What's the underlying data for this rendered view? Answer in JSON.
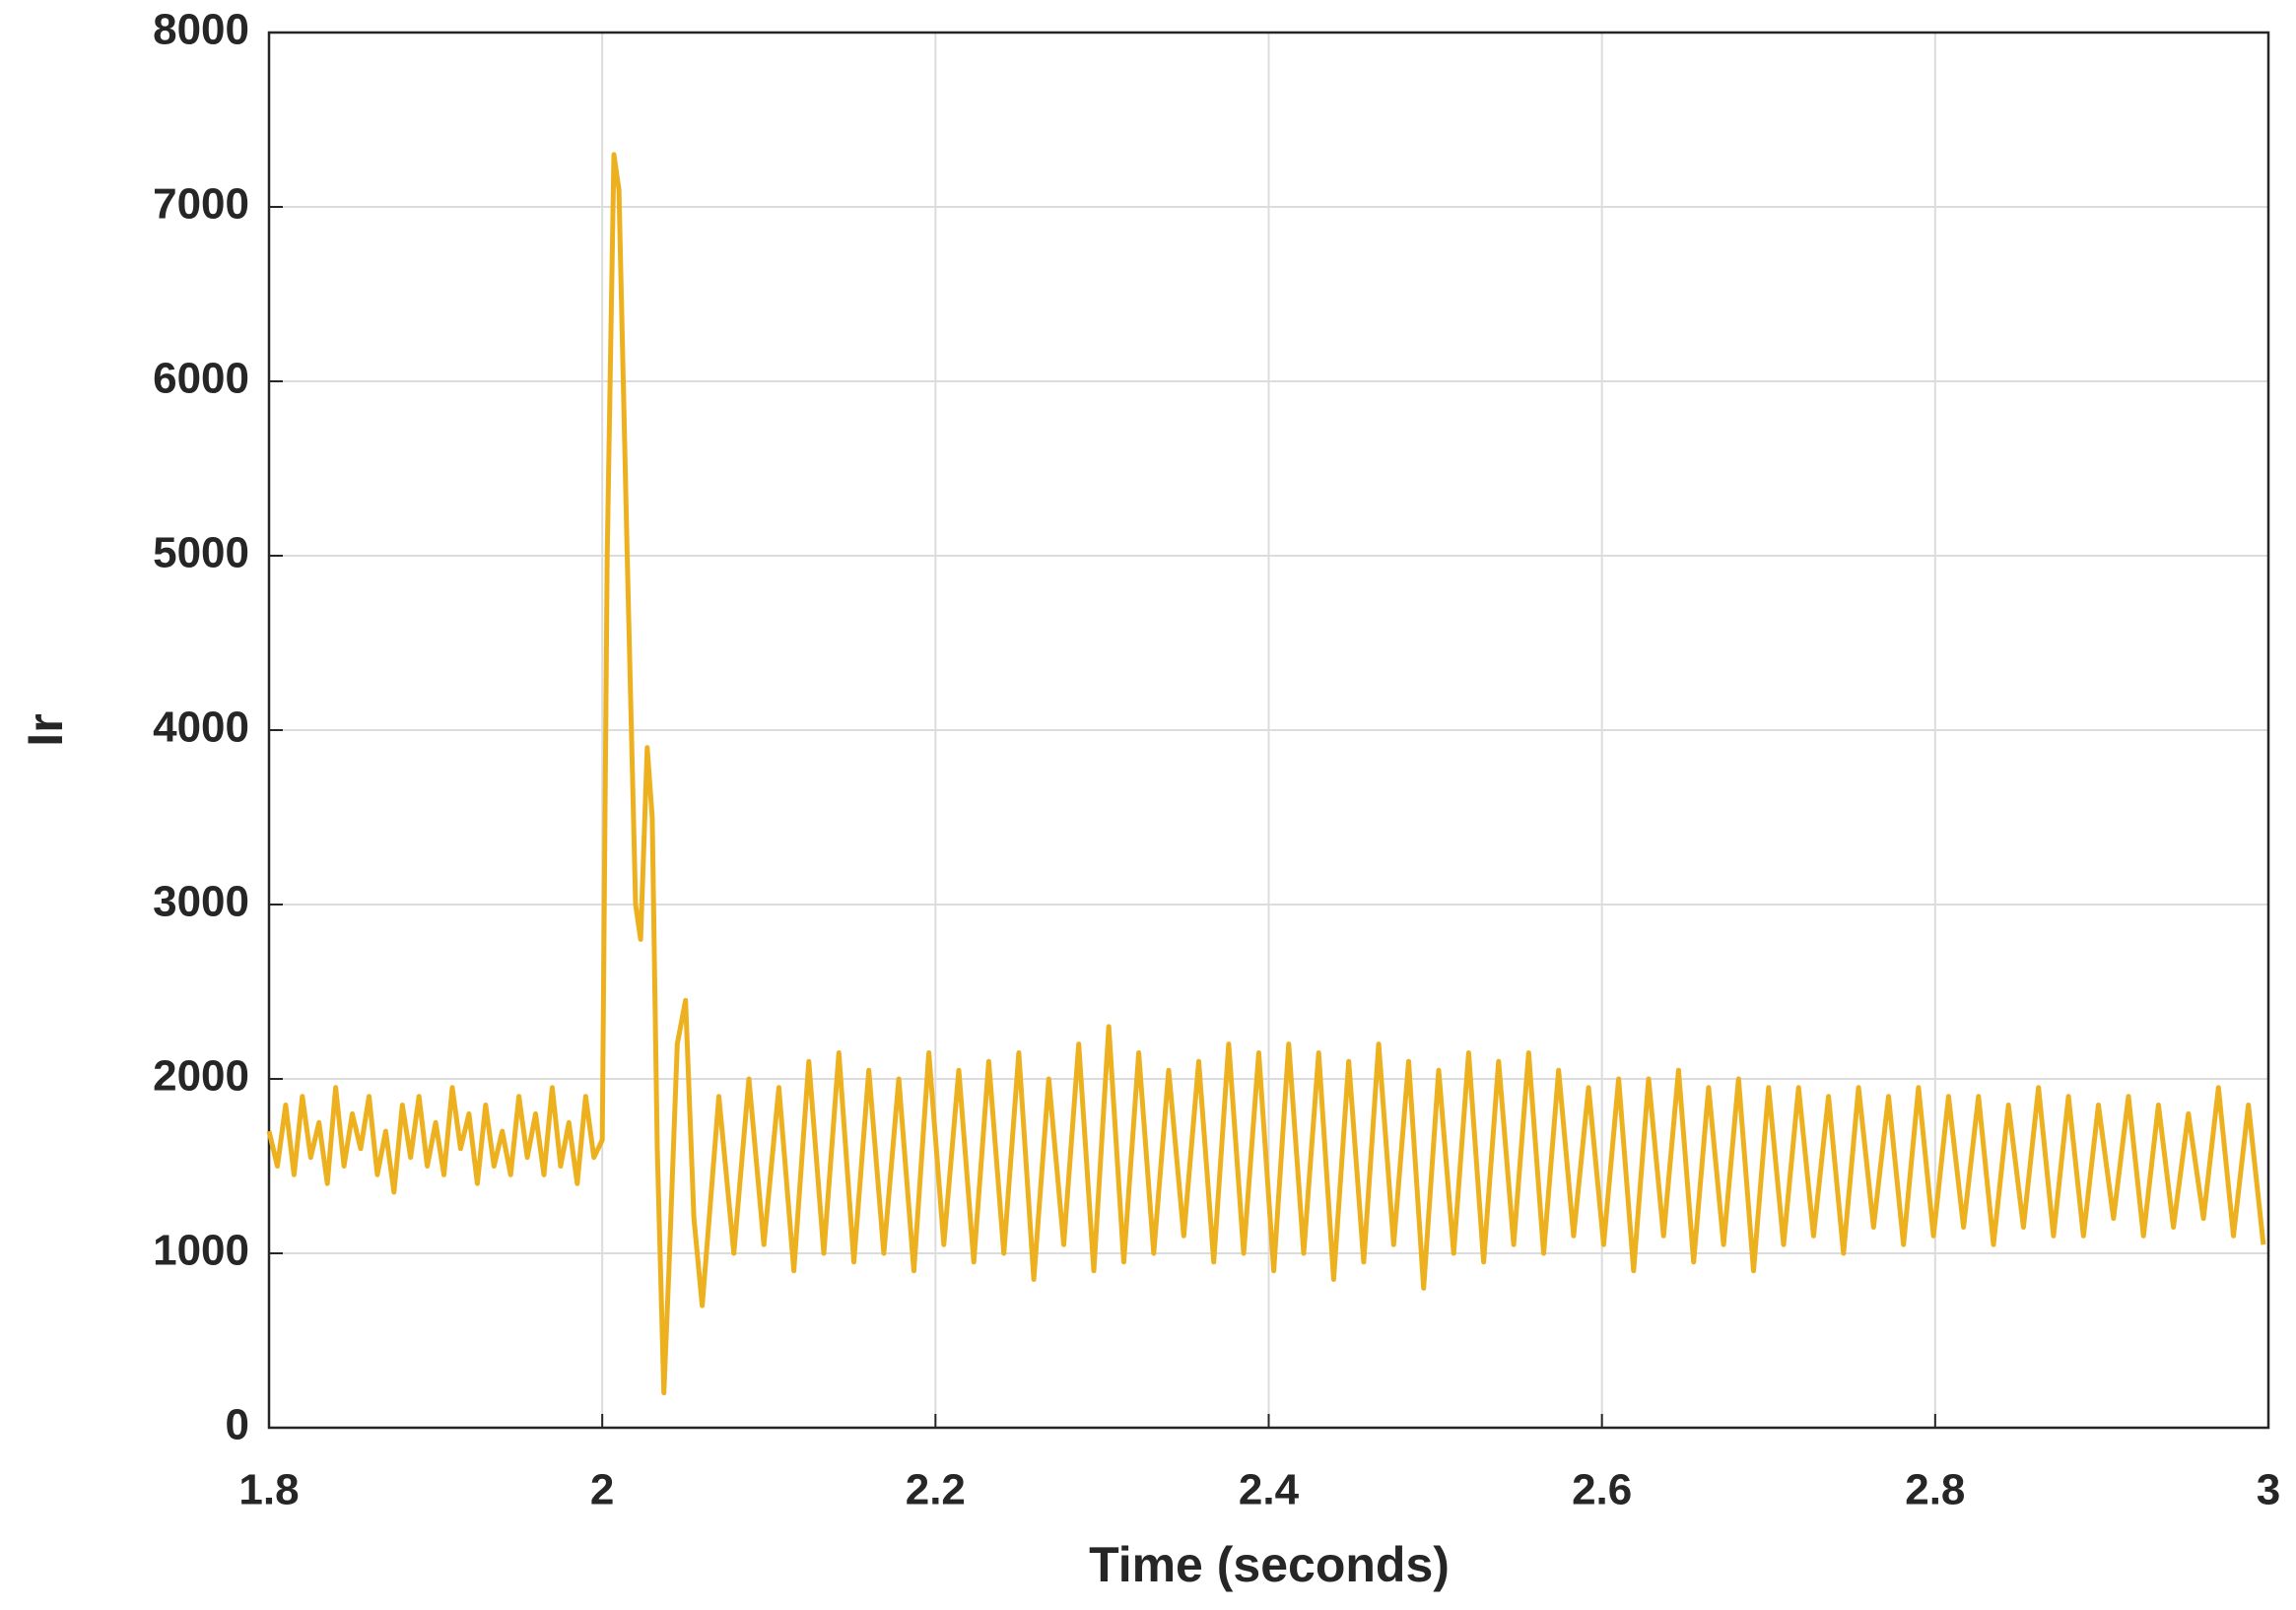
{
  "chart_data": {
    "type": "line",
    "x_label": "Time (seconds)",
    "y_label": "Ir",
    "xlim": [
      1.8,
      3
    ],
    "ylim": [
      0,
      8000
    ],
    "xticks": [
      1.8,
      2,
      2.2,
      2.4,
      2.6,
      2.8,
      3
    ],
    "yticks": [
      0,
      1000,
      2000,
      3000,
      4000,
      5000,
      6000,
      7000,
      8000
    ],
    "grid": true,
    "series": [
      {
        "color": "#EDB120",
        "x": [
          1.8,
          1.805,
          1.81,
          1.815,
          1.82,
          1.825,
          1.83,
          1.835,
          1.84,
          1.845,
          1.85,
          1.855,
          1.86,
          1.865,
          1.87,
          1.875,
          1.88,
          1.885,
          1.89,
          1.895,
          1.9,
          1.905,
          1.91,
          1.915,
          1.92,
          1.925,
          1.93,
          1.935,
          1.94,
          1.945,
          1.95,
          1.955,
          1.96,
          1.965,
          1.97,
          1.975,
          1.98,
          1.985,
          1.99,
          1.995,
          2.0,
          2.003,
          2.007,
          2.01,
          2.015,
          2.02,
          2.023,
          2.027,
          2.03,
          2.033,
          2.037,
          2.04,
          2.045,
          2.05,
          2.055,
          2.06,
          2.065,
          2.07,
          2.079,
          2.088,
          2.097,
          2.106,
          2.115,
          2.124,
          2.133,
          2.142,
          2.151,
          2.16,
          2.169,
          2.178,
          2.187,
          2.196,
          2.205,
          2.214,
          2.223,
          2.232,
          2.241,
          2.25,
          2.259,
          2.268,
          2.277,
          2.286,
          2.295,
          2.304,
          2.313,
          2.322,
          2.331,
          2.34,
          2.349,
          2.358,
          2.367,
          2.376,
          2.385,
          2.394,
          2.403,
          2.412,
          2.421,
          2.43,
          2.439,
          2.448,
          2.457,
          2.466,
          2.475,
          2.484,
          2.493,
          2.502,
          2.511,
          2.52,
          2.529,
          2.538,
          2.547,
          2.556,
          2.565,
          2.574,
          2.583,
          2.592,
          2.601,
          2.61,
          2.619,
          2.628,
          2.637,
          2.646,
          2.655,
          2.664,
          2.673,
          2.682,
          2.691,
          2.7,
          2.709,
          2.718,
          2.727,
          2.736,
          2.745,
          2.754,
          2.763,
          2.772,
          2.781,
          2.79,
          2.799,
          2.808,
          2.817,
          2.826,
          2.835,
          2.844,
          2.853,
          2.862,
          2.871,
          2.88,
          2.889,
          2.898,
          2.907,
          2.916,
          2.925,
          2.934,
          2.943,
          2.952,
          2.961,
          2.97,
          2.979,
          2.988,
          2.997
        ],
        "values": [
          1700,
          1500,
          1850,
          1450,
          1900,
          1550,
          1750,
          1400,
          1950,
          1500,
          1800,
          1600,
          1900,
          1450,
          1700,
          1350,
          1850,
          1550,
          1900,
          1500,
          1750,
          1450,
          1950,
          1600,
          1800,
          1400,
          1850,
          1500,
          1700,
          1450,
          1900,
          1550,
          1800,
          1450,
          1950,
          1500,
          1750,
          1400,
          1900,
          1550,
          1650,
          5000,
          7300,
          7100,
          5000,
          3000,
          2800,
          3900,
          3500,
          1600,
          200,
          900,
          2200,
          2450,
          1200,
          700,
          1300,
          1900,
          1000,
          2000,
          1050,
          1950,
          900,
          2100,
          1000,
          2150,
          950,
          2050,
          1000,
          2000,
          900,
          2150,
          1050,
          2050,
          950,
          2100,
          1000,
          2150,
          850,
          2000,
          1050,
          2200,
          900,
          2300,
          950,
          2150,
          1000,
          2050,
          1100,
          2100,
          950,
          2200,
          1000,
          2150,
          900,
          2200,
          1000,
          2150,
          850,
          2100,
          950,
          2200,
          1050,
          2100,
          800,
          2050,
          1000,
          2150,
          950,
          2100,
          1050,
          2150,
          1000,
          2050,
          1100,
          1950,
          1050,
          2000,
          900,
          2000,
          1100,
          2050,
          950,
          1950,
          1050,
          2000,
          900,
          1950,
          1050,
          1950,
          1100,
          1900,
          1000,
          1950,
          1150,
          1900,
          1050,
          1950,
          1100,
          1900,
          1150,
          1900,
          1050,
          1850,
          1150,
          1950,
          1100,
          1900,
          1100,
          1850,
          1200,
          1900,
          1100,
          1850,
          1150,
          1800,
          1200,
          1950,
          1100,
          1850,
          1050
        ]
      }
    ]
  }
}
